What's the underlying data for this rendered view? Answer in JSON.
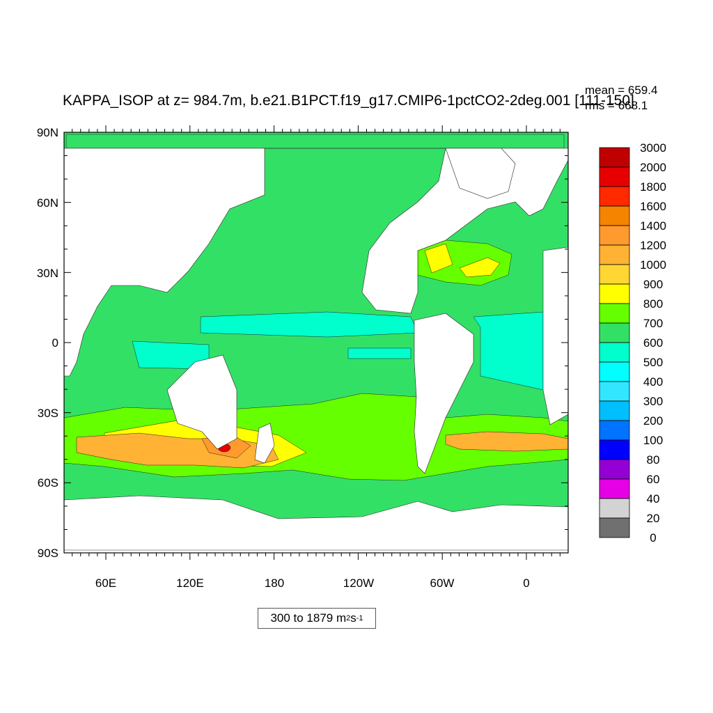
{
  "title": "KAPPA_ISOP at z= 984.7m, b.e21.B1PCT.f19_g17.CMIP6-1pctCO2-2deg.001 [111-150]",
  "stats": {
    "mean": "mean = 659.4",
    "rms": "rms = 668.1"
  },
  "range_label": {
    "text": "300 to 1879 m",
    "exp1": "2",
    "mid": " s",
    "exp2": "-1"
  },
  "axes": {
    "lat_labels": [
      "90N",
      "60N",
      "30N",
      "0",
      "30S",
      "60S",
      "90S"
    ],
    "lon_labels": [
      "60E",
      "120E",
      "180",
      "120W",
      "60W",
      "0"
    ]
  },
  "colorbar": {
    "labels": [
      "3000",
      "2000",
      "1800",
      "1600",
      "1400",
      "1200",
      "1000",
      "900",
      "800",
      "700",
      "600",
      "500",
      "400",
      "300",
      "200",
      "100",
      "80",
      "60",
      "40",
      "20",
      "0"
    ],
    "colors": [
      "#c00000",
      "#e60000",
      "#ff2a00",
      "#f58400",
      "#ff9a2e",
      "#ffb233",
      "#ffd633",
      "#ffff00",
      "#66ff00",
      "#33e066",
      "#00ffcc",
      "#00ffff",
      "#33e6ff",
      "#00bfff",
      "#0073ff",
      "#0000ff",
      "#9400d3",
      "#e600e6",
      "#d3d3d3",
      "#707070"
    ]
  },
  "map_colors": {
    "base": "#33e066",
    "low": "#00ffcc",
    "mid": "#66ff00",
    "high": "#ffff00",
    "higher": "#ffd633",
    "orange": "#ffb233",
    "darkorange": "#ff9a2e",
    "red": "#e60000",
    "land": "#ffffff"
  }
}
